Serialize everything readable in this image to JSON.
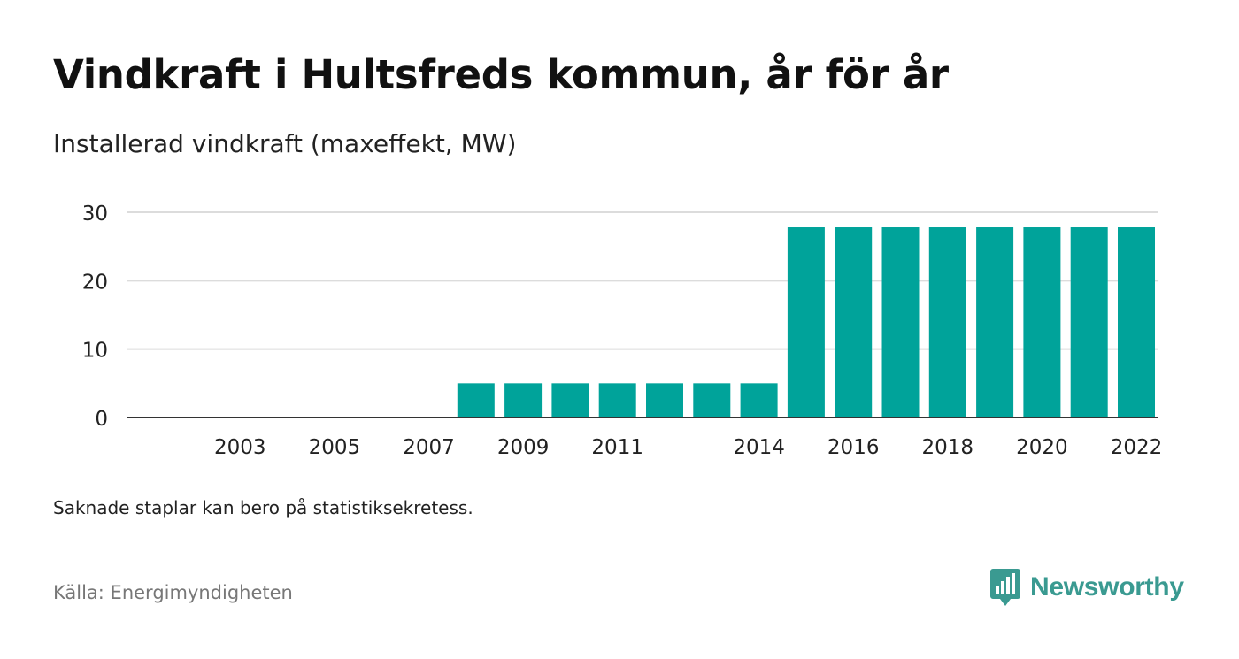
{
  "chart_data": {
    "type": "bar",
    "title": "Vindkraft i Hultsfreds kommun, år för år",
    "subtitle": "Installerad vindkraft (maxeffekt, MW)",
    "categories": [
      "2002",
      "2003",
      "2004",
      "2005",
      "2006",
      "2007",
      "2008",
      "2009",
      "2010",
      "2011",
      "2012",
      "2013",
      "2014",
      "2015",
      "2016",
      "2017",
      "2018",
      "2019",
      "2020",
      "2021",
      "2022"
    ],
    "x_tick_labels": [
      "2003",
      "2005",
      "2007",
      "2009",
      "2011",
      "2014",
      "2016",
      "2018",
      "2020",
      "2022"
    ],
    "values": [
      0,
      0,
      0,
      0,
      0,
      0,
      5,
      5,
      5,
      5,
      5,
      5,
      5,
      27.8,
      27.8,
      27.8,
      27.8,
      27.8,
      27.8,
      27.8,
      27.8
    ],
    "ylim": [
      0,
      30
    ],
    "yticks": [
      0,
      10,
      20,
      30
    ],
    "grid": true,
    "bar_color": "#00a39a"
  },
  "note": "Saknade staplar kan bero på statistiksekretess.",
  "source": "Källa: Energimyndigheten",
  "brand": {
    "name": "Newsworthy",
    "color": "#3a9a91",
    "icon": "newsworthy-logo-icon"
  }
}
